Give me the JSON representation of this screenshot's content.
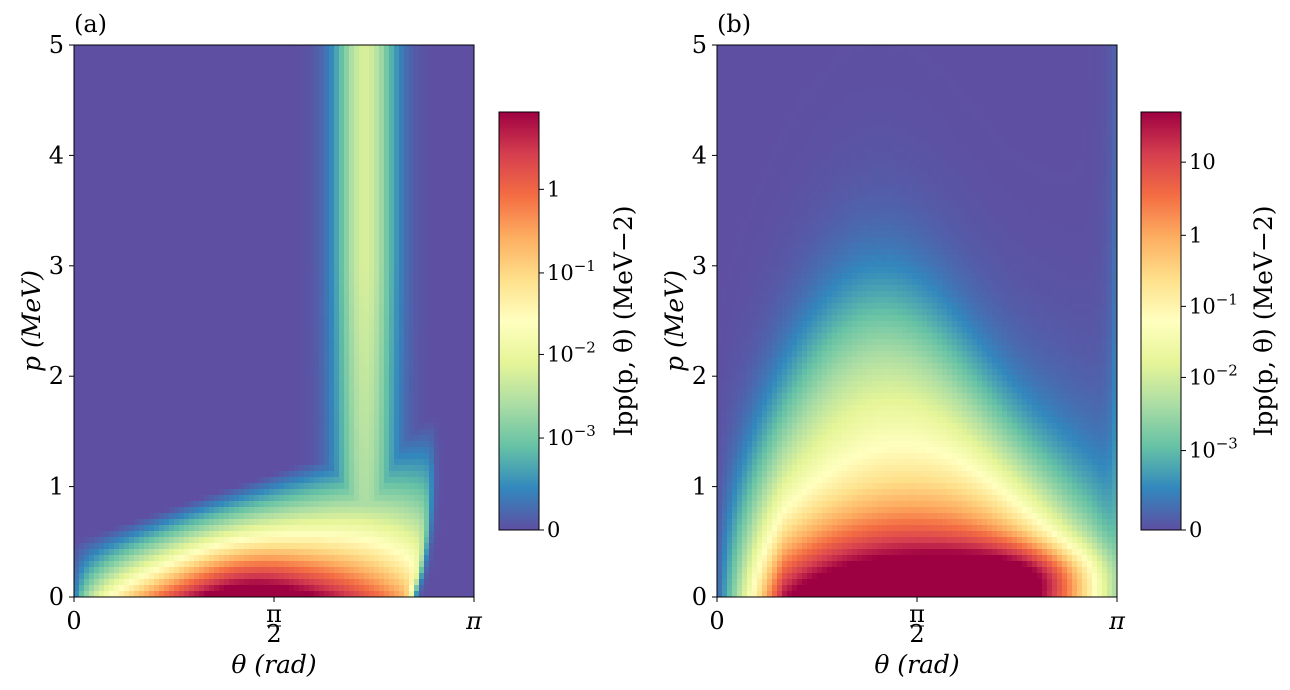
{
  "chart_data": [
    {
      "type": "heatmap",
      "panel_label": "(a)",
      "xlabel": "θ (rad)",
      "ylabel": "p (MeV)",
      "xlim": [
        0,
        3.14159
      ],
      "ylim": [
        0,
        5
      ],
      "x_ticks": [
        {
          "value": 0,
          "label": "0"
        },
        {
          "value": 1.5708,
          "label": "π/2"
        },
        {
          "value": 3.14159,
          "label": "π"
        }
      ],
      "y_ticks": [
        {
          "value": 0,
          "label": "0"
        },
        {
          "value": 1,
          "label": "1"
        },
        {
          "value": 2,
          "label": "2"
        },
        {
          "value": 3,
          "label": "3"
        },
        {
          "value": 4,
          "label": "4"
        },
        {
          "value": 5,
          "label": "5"
        }
      ],
      "colorbar": {
        "label": "Ipp(p, θ) (MeV−2)",
        "colormap": "Spectral_r",
        "scale": "log-like",
        "ticks": [
          {
            "level": 0.0,
            "label": "0"
          },
          {
            "level": 0.22,
            "label": "10−3"
          },
          {
            "level": 0.42,
            "label": "10−2"
          },
          {
            "level": 0.615,
            "label": "10−1"
          },
          {
            "level": 0.815,
            "label": "1"
          }
        ]
      },
      "features": {
        "hot_spot": {
          "theta": 1.3,
          "p": 0.1
        },
        "ridge_theta": 2.3
      }
    },
    {
      "type": "heatmap",
      "panel_label": "(b)",
      "xlabel": "θ (rad)",
      "ylabel": "p (MeV)",
      "xlim": [
        0,
        3.14159
      ],
      "ylim": [
        0,
        5
      ],
      "x_ticks": [
        {
          "value": 0,
          "label": "0"
        },
        {
          "value": 1.5708,
          "label": "π/2"
        },
        {
          "value": 3.14159,
          "label": "π"
        }
      ],
      "y_ticks": [
        {
          "value": 0,
          "label": "0"
        },
        {
          "value": 1,
          "label": "1"
        },
        {
          "value": 2,
          "label": "2"
        },
        {
          "value": 3,
          "label": "3"
        },
        {
          "value": 4,
          "label": "4"
        },
        {
          "value": 5,
          "label": "5"
        }
      ],
      "colorbar": {
        "label": "Ipp(p, θ) (MeV−2)",
        "colormap": "Spectral_r",
        "scale": "log-like",
        "ticks": [
          {
            "level": 0.0,
            "label": "0"
          },
          {
            "level": 0.19,
            "label": "10−3"
          },
          {
            "level": 0.365,
            "label": "10−2"
          },
          {
            "level": 0.535,
            "label": "10−1"
          },
          {
            "level": 0.705,
            "label": "1"
          },
          {
            "level": 0.88,
            "label": "10"
          }
        ]
      },
      "features": {
        "hot_spot": {
          "theta": 2.45,
          "p": 0.2
        },
        "valley": {
          "theta": 2.55,
          "p": 2.4
        }
      }
    }
  ]
}
